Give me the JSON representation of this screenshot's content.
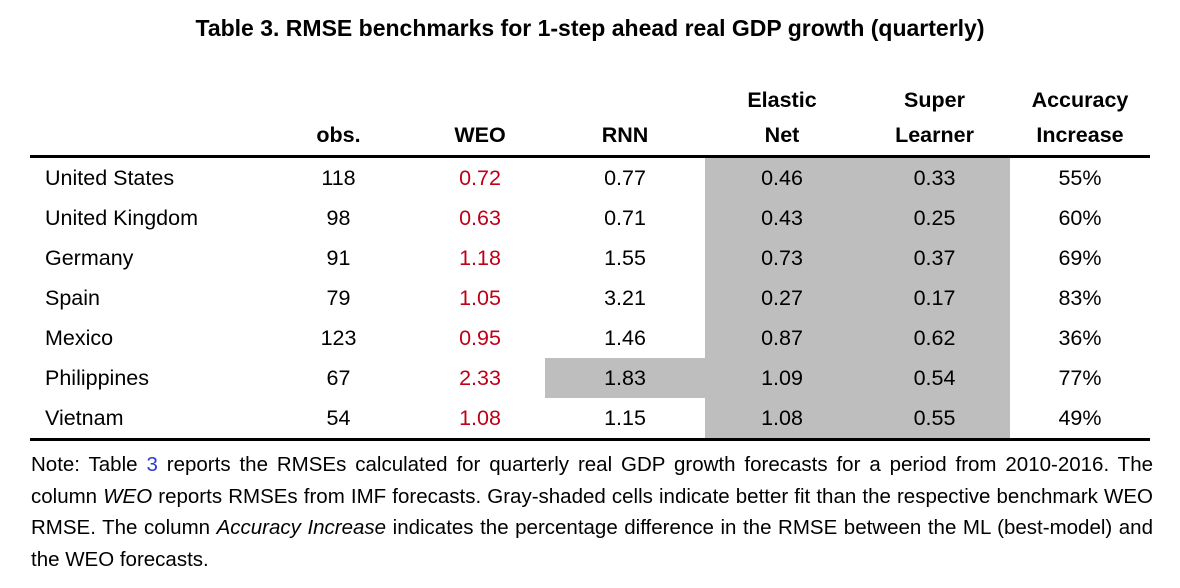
{
  "title": "Table 3. RMSE benchmarks for 1-step ahead real GDP growth (quarterly)",
  "table": {
    "columns": {
      "country": "",
      "obs": "obs.",
      "weo": "WEO",
      "rnn": "RNN",
      "elastic_net_line1": "Elastic",
      "elastic_net_line2": "Net",
      "super_learner_line1": "Super",
      "super_learner_line2": "Learner",
      "accuracy_line1": "Accuracy",
      "accuracy_line2": "Increase"
    },
    "rows": [
      {
        "country": "United States",
        "obs": "118",
        "weo": "0.72",
        "rnn": "0.77",
        "elastic_net": "0.46",
        "super_learner": "0.33",
        "accuracy_increase": "55%",
        "shade": {
          "rnn": false,
          "elastic_net": true,
          "super_learner": true
        }
      },
      {
        "country": "United Kingdom",
        "obs": "98",
        "weo": "0.63",
        "rnn": "0.71",
        "elastic_net": "0.43",
        "super_learner": "0.25",
        "accuracy_increase": "60%",
        "shade": {
          "rnn": false,
          "elastic_net": true,
          "super_learner": true
        }
      },
      {
        "country": "Germany",
        "obs": "91",
        "weo": "1.18",
        "rnn": "1.55",
        "elastic_net": "0.73",
        "super_learner": "0.37",
        "accuracy_increase": "69%",
        "shade": {
          "rnn": false,
          "elastic_net": true,
          "super_learner": true
        }
      },
      {
        "country": "Spain",
        "obs": "79",
        "weo": "1.05",
        "rnn": "3.21",
        "elastic_net": "0.27",
        "super_learner": "0.17",
        "accuracy_increase": "83%",
        "shade": {
          "rnn": false,
          "elastic_net": true,
          "super_learner": true
        }
      },
      {
        "country": "Mexico",
        "obs": "123",
        "weo": "0.95",
        "rnn": "1.46",
        "elastic_net": "0.87",
        "super_learner": "0.62",
        "accuracy_increase": "36%",
        "shade": {
          "rnn": false,
          "elastic_net": true,
          "super_learner": true
        }
      },
      {
        "country": "Philippines",
        "obs": "67",
        "weo": "2.33",
        "rnn": "1.83",
        "elastic_net": "1.09",
        "super_learner": "0.54",
        "accuracy_increase": "77%",
        "shade": {
          "rnn": true,
          "elastic_net": true,
          "super_learner": true
        }
      },
      {
        "country": "Vietnam",
        "obs": "54",
        "weo": "1.08",
        "rnn": "1.15",
        "elastic_net": "1.08",
        "super_learner": "0.55",
        "accuracy_increase": "49%",
        "shade": {
          "rnn": false,
          "elastic_net": true,
          "super_learner": true
        }
      }
    ]
  },
  "note": {
    "prefix": "Note: Table ",
    "link": "3",
    "part1": " reports the RMSEs calculated for quarterly real GDP growth forecasts for a period from 2010-2016. The column ",
    "italic1": "WEO",
    "part2": " reports RMSEs from IMF forecasts. Gray-shaded cells indicate better fit than the respective benchmark WEO RMSE. The column ",
    "italic2": "Accuracy Increase",
    "part3": " indicates the percentage difference in the RMSE between the ML (best-model) and the WEO forecasts."
  },
  "colors": {
    "weo_text": "#C00018",
    "shaded_cell": "#BEBEBE",
    "link": "#2B3CD0"
  }
}
